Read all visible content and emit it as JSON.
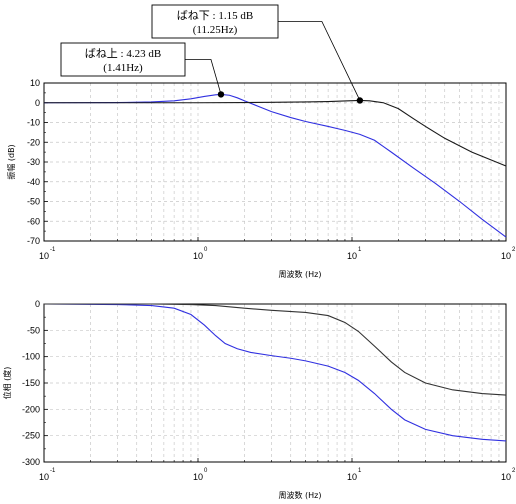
{
  "chart_data": [
    {
      "type": "line",
      "xscale": "log",
      "xlim": [
        0.1,
        100
      ],
      "ylim": [
        -70,
        10
      ],
      "xlabel": "周波数 (Hz)",
      "ylabel": "振幅 (dB)",
      "x_tick_labels": [
        {
          "base": "10",
          "exp": "-1",
          "value": 0.1
        },
        {
          "base": "10",
          "exp": "0",
          "value": 1
        },
        {
          "base": "10",
          "exp": "1",
          "value": 10
        },
        {
          "base": "10",
          "exp": "2",
          "value": 100
        }
      ],
      "y_ticks": [
        10,
        0,
        -10,
        -20,
        -30,
        -40,
        -50,
        -60,
        -70
      ],
      "grid": true,
      "series": [
        {
          "color": "#3030e0",
          "points": [
            [
              0.1,
              0
            ],
            [
              0.3,
              0.1
            ],
            [
              0.5,
              0.4
            ],
            [
              0.7,
              1.0
            ],
            [
              0.9,
              2.0
            ],
            [
              1.1,
              3.2
            ],
            [
              1.3,
              4.0
            ],
            [
              1.41,
              4.23
            ],
            [
              1.6,
              3.8
            ],
            [
              1.8,
              2.5
            ],
            [
              2.0,
              1.0
            ],
            [
              2.5,
              -2.0
            ],
            [
              3.0,
              -4.5
            ],
            [
              4.0,
              -7.5
            ],
            [
              5.0,
              -9.5
            ],
            [
              7.0,
              -12.0
            ],
            [
              9.0,
              -14.0
            ],
            [
              11.25,
              -16.0
            ],
            [
              14,
              -19
            ],
            [
              18,
              -25
            ],
            [
              25,
              -33
            ],
            [
              35,
              -41
            ],
            [
              50,
              -50
            ],
            [
              70,
              -59
            ],
            [
              100,
              -68
            ]
          ]
        },
        {
          "color": "#1a1a1a",
          "points": [
            [
              0.1,
              0
            ],
            [
              0.5,
              0
            ],
            [
              1,
              0
            ],
            [
              2,
              0.1
            ],
            [
              3,
              0.2
            ],
            [
              5,
              0.4
            ],
            [
              7,
              0.6
            ],
            [
              9,
              0.9
            ],
            [
              11.25,
              1.15
            ],
            [
              13,
              1.0
            ],
            [
              16,
              0
            ],
            [
              20,
              -3
            ],
            [
              25,
              -8
            ],
            [
              30,
              -12
            ],
            [
              40,
              -18
            ],
            [
              60,
              -25
            ],
            [
              100,
              -32
            ]
          ]
        }
      ],
      "annotations": [
        {
          "line1": "ばね上 : 4.23 dB",
          "line2": "(1.41Hz)",
          "x": 1.41,
          "y": 4.23
        },
        {
          "line1": "ばね下 : 1.15 dB",
          "line2": "(11.25Hz)",
          "x": 11.25,
          "y": 1.15
        }
      ]
    },
    {
      "type": "line",
      "xscale": "log",
      "xlim": [
        0.1,
        100
      ],
      "ylim": [
        -300,
        0
      ],
      "xlabel": "周波数 (Hz)",
      "ylabel": "位相 (度)",
      "x_tick_labels": [
        {
          "base": "10",
          "exp": "-1",
          "value": 0.1
        },
        {
          "base": "10",
          "exp": "0",
          "value": 1
        },
        {
          "base": "10",
          "exp": "1",
          "value": 10
        },
        {
          "base": "10",
          "exp": "2",
          "value": 100
        }
      ],
      "y_ticks": [
        0,
        -50,
        -100,
        -150,
        -200,
        -250,
        -300
      ],
      "grid": true,
      "series": [
        {
          "color": "#3030e0",
          "points": [
            [
              0.1,
              0
            ],
            [
              0.3,
              -1
            ],
            [
              0.5,
              -3
            ],
            [
              0.7,
              -8
            ],
            [
              0.9,
              -20
            ],
            [
              1.1,
              -40
            ],
            [
              1.3,
              -60
            ],
            [
              1.5,
              -75
            ],
            [
              1.8,
              -85
            ],
            [
              2.2,
              -92
            ],
            [
              3,
              -98
            ],
            [
              4,
              -103
            ],
            [
              5,
              -108
            ],
            [
              7,
              -118
            ],
            [
              9,
              -130
            ],
            [
              11,
              -145
            ],
            [
              14,
              -170
            ],
            [
              18,
              -200
            ],
            [
              22,
              -220
            ],
            [
              30,
              -238
            ],
            [
              45,
              -250
            ],
            [
              70,
              -257
            ],
            [
              100,
              -260
            ]
          ]
        },
        {
          "color": "#333333",
          "points": [
            [
              0.1,
              0
            ],
            [
              0.5,
              0
            ],
            [
              0.9,
              -1
            ],
            [
              1.3,
              -3
            ],
            [
              2,
              -8
            ],
            [
              3,
              -12
            ],
            [
              5,
              -16
            ],
            [
              7,
              -22
            ],
            [
              9,
              -35
            ],
            [
              11,
              -52
            ],
            [
              14,
              -80
            ],
            [
              18,
              -110
            ],
            [
              22,
              -130
            ],
            [
              30,
              -150
            ],
            [
              45,
              -163
            ],
            [
              70,
              -170
            ],
            [
              100,
              -173
            ]
          ]
        }
      ],
      "annotations": []
    }
  ]
}
